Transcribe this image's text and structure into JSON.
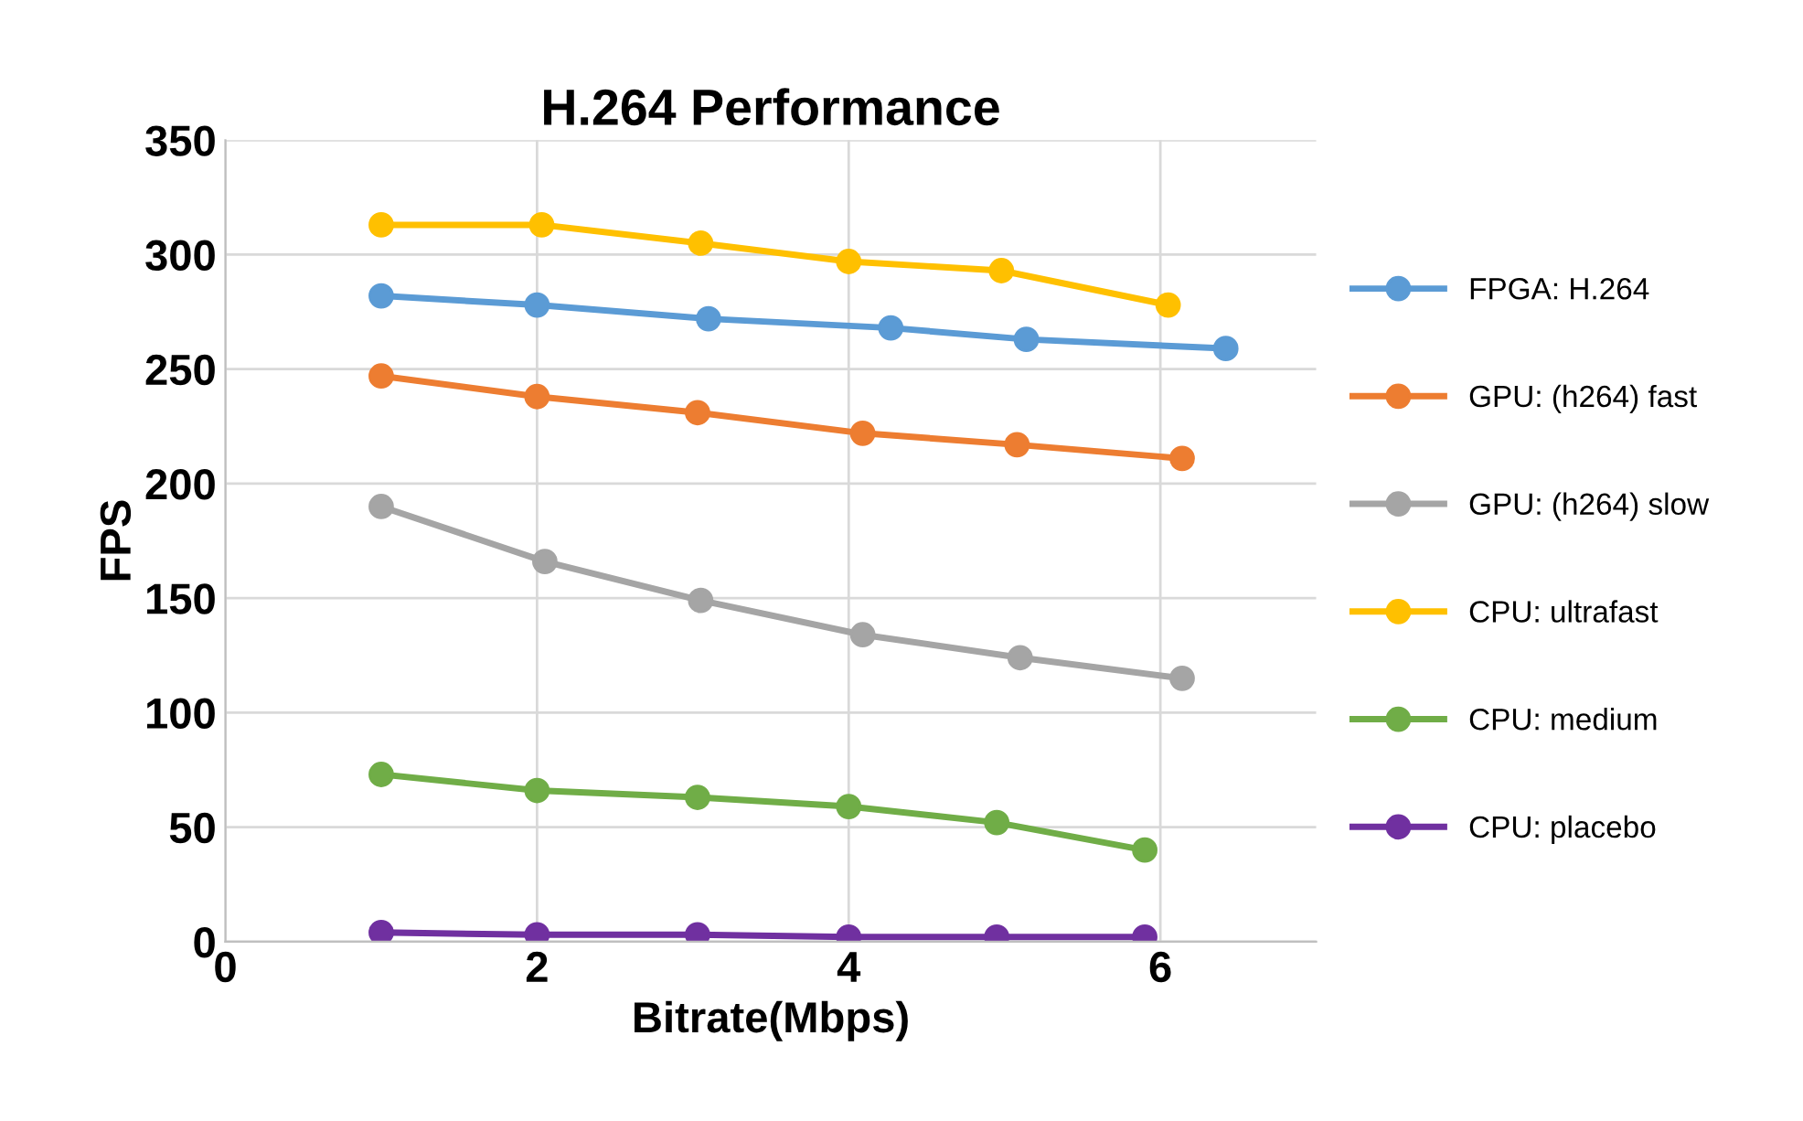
{
  "chart_data": {
    "type": "line",
    "title": "H.264 Performance",
    "xlabel": "Bitrate(Mbps)",
    "ylabel": "FPS",
    "xlim": [
      0,
      7
    ],
    "xticks": [
      0,
      2,
      4,
      6
    ],
    "ylim": [
      0,
      350
    ],
    "yticks": [
      0,
      50,
      100,
      150,
      200,
      250,
      300,
      350
    ],
    "grid": true,
    "legend": "right",
    "marker": "circle",
    "line_style": "solid",
    "series": [
      {
        "name": "FPGA: H.264",
        "color": "#5b9bd5",
        "x": [
          1,
          2,
          3.1,
          4.27,
          5.14,
          6.42
        ],
        "values": [
          282,
          278,
          272,
          268,
          263,
          259
        ]
      },
      {
        "name": "GPU: (h264) fast",
        "color": "#ed7d31",
        "x": [
          1,
          2,
          3.03,
          4.09,
          5.08,
          6.14
        ],
        "values": [
          247,
          238,
          231,
          222,
          217,
          211
        ]
      },
      {
        "name": "GPU: (h264) slow",
        "color": "#a5a5a5",
        "x": [
          1,
          2.05,
          3.05,
          4.09,
          5.1,
          6.14
        ],
        "values": [
          190,
          166,
          149,
          134,
          124,
          115
        ]
      },
      {
        "name": "CPU: ultrafast",
        "color": "#ffc000",
        "x": [
          1,
          2.03,
          3.05,
          4.0,
          4.98,
          6.05
        ],
        "values": [
          313,
          313,
          305,
          297,
          293,
          278
        ]
      },
      {
        "name": "CPU: medium",
        "color": "#70ad47",
        "x": [
          1,
          2,
          3.03,
          4.0,
          4.95,
          5.9
        ],
        "values": [
          73,
          66,
          63,
          59,
          52,
          40
        ]
      },
      {
        "name": "CPU: placebo",
        "color": "#7030a0",
        "x": [
          1,
          2,
          3.03,
          4.0,
          4.95,
          5.9
        ],
        "values": [
          4,
          3,
          3,
          2,
          2,
          2
        ]
      }
    ]
  }
}
